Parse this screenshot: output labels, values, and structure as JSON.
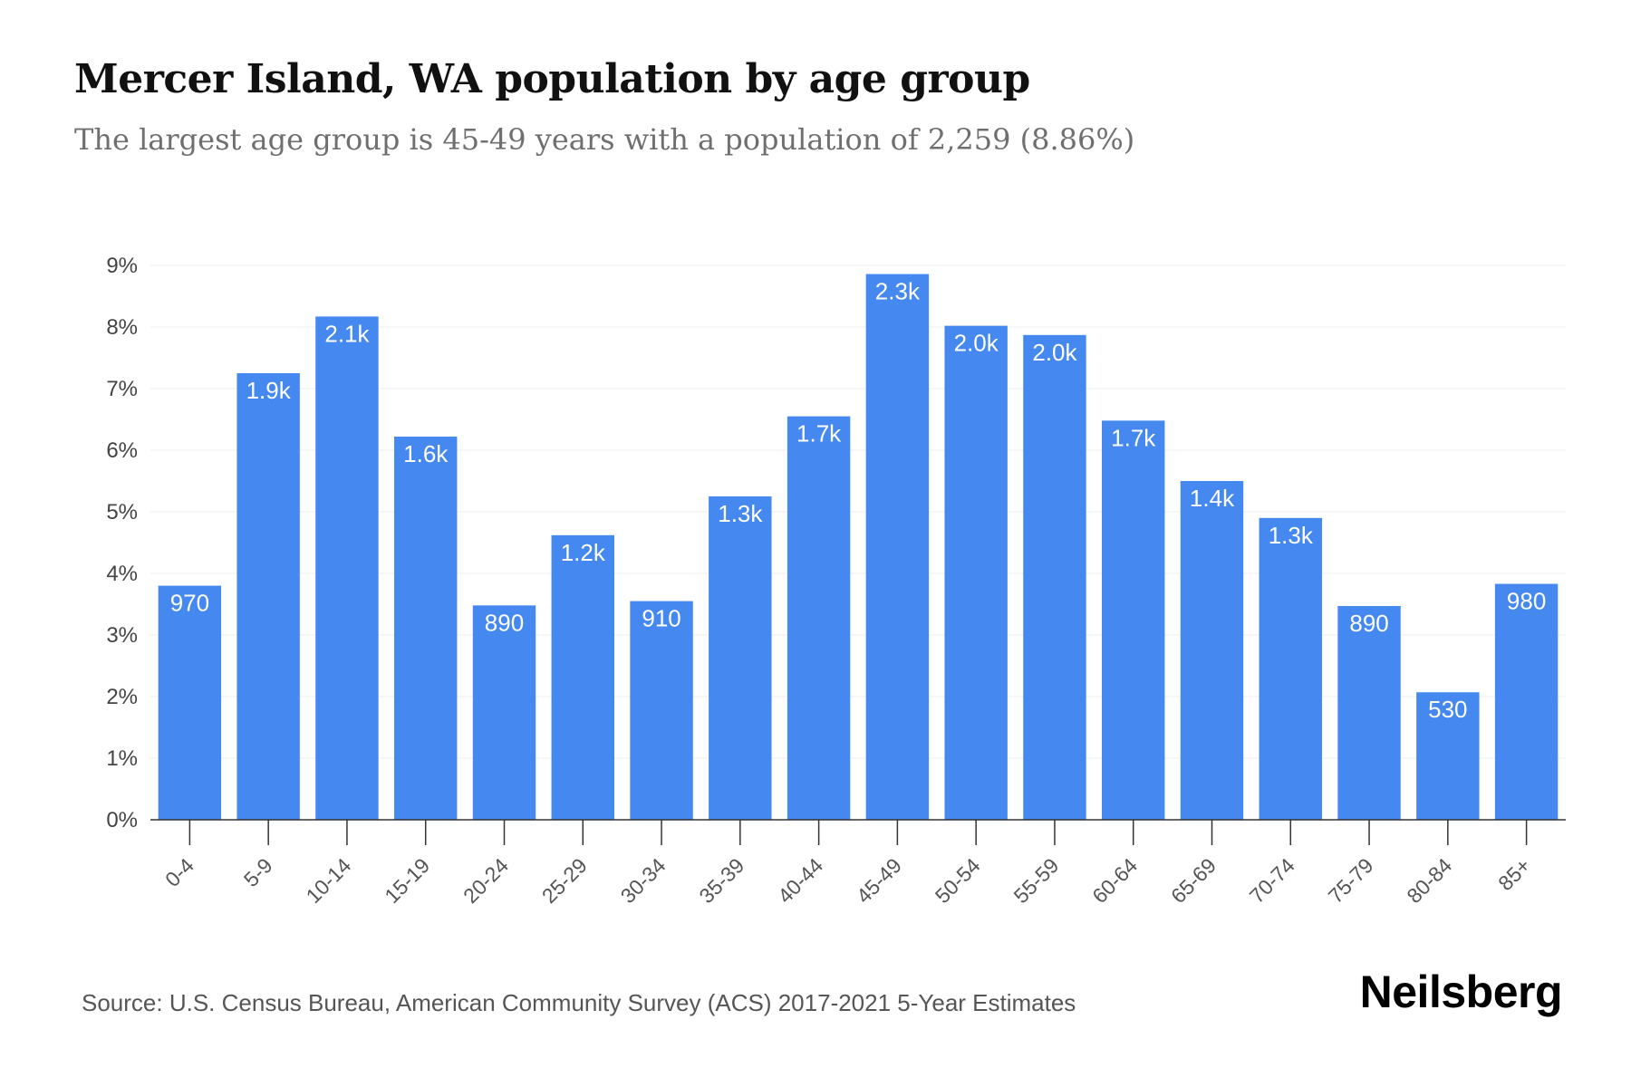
{
  "header": {
    "title": "Mercer Island, WA population by age group",
    "subtitle": "The largest age group is 45-49 years with a population of 2,259 (8.86%)"
  },
  "footer": {
    "source": "Source: U.S. Census Bureau, American Community Survey (ACS) 2017-2021 5-Year Estimates",
    "brand": "Neilsberg"
  },
  "colors": {
    "bar": "#4488f0",
    "grid": "#eeeeee",
    "axis": "#333333"
  },
  "chart_data": {
    "type": "bar",
    "title": "Mercer Island, WA population by age group",
    "subtitle": "The largest age group is 45-49 years with a population of 2,259 (8.86%)",
    "xlabel": "",
    "ylabel": "",
    "ylim": [
      0,
      9
    ],
    "y_ticks": [
      "0%",
      "1%",
      "2%",
      "3%",
      "4%",
      "5%",
      "6%",
      "7%",
      "8%",
      "9%"
    ],
    "grid": true,
    "categories": [
      "0-4",
      "5-9",
      "10-14",
      "15-19",
      "20-24",
      "25-29",
      "30-34",
      "35-39",
      "40-44",
      "45-49",
      "50-54",
      "55-59",
      "60-64",
      "65-69",
      "70-74",
      "75-79",
      "80-84",
      "85+"
    ],
    "values": [
      3.8,
      7.25,
      8.17,
      6.22,
      3.48,
      4.62,
      3.55,
      5.25,
      6.55,
      8.86,
      8.02,
      7.87,
      6.48,
      5.5,
      4.9,
      3.47,
      2.07,
      3.83
    ],
    "data_labels": [
      "970",
      "1.9k",
      "2.1k",
      "1.6k",
      "890",
      "1.2k",
      "910",
      "1.3k",
      "1.7k",
      "2.3k",
      "2.0k",
      "2.0k",
      "1.7k",
      "1.4k",
      "1.3k",
      "890",
      "530",
      "980"
    ]
  }
}
